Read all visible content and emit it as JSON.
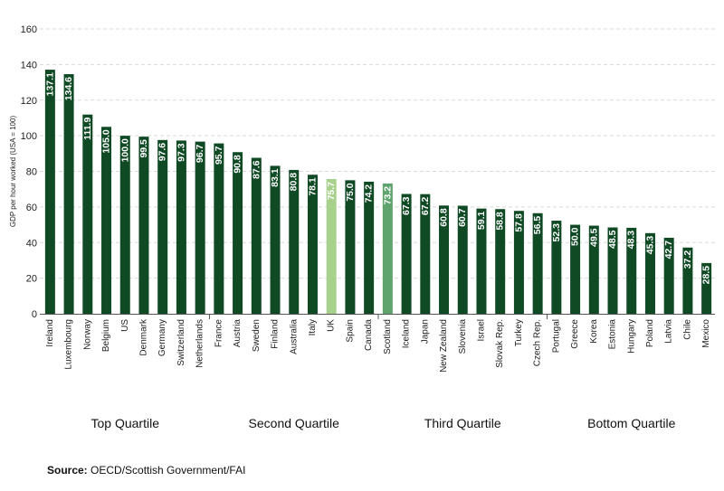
{
  "chart_data": {
    "type": "bar",
    "ylabel": "GDP per hour worked (USA = 100)",
    "ylim": [
      0,
      160
    ],
    "yticks": [
      0,
      20,
      40,
      60,
      80,
      100,
      120,
      140,
      160
    ],
    "grid": true,
    "categories": [
      "Ireland",
      "Luxembourg",
      "Norway",
      "Belgium",
      "US",
      "Denmark",
      "Germany",
      "Switzerland",
      "Netherlands",
      "France",
      "Austria",
      "Sweden",
      "Finland",
      "Australia",
      "Italy",
      "UK",
      "Spain",
      "Canada",
      "Scotland",
      "Iceland",
      "Japan",
      "New Zealand",
      "Slovenia",
      "Israel",
      "Slovak Rep.",
      "Turkey",
      "Czech Rep.",
      "Portugal",
      "Greece",
      "Korea",
      "Estonia",
      "Hungary",
      "Poland",
      "Latvia",
      "Chile",
      "Mexico"
    ],
    "values": [
      137.1,
      134.6,
      111.9,
      105.0,
      100.0,
      99.5,
      97.6,
      97.3,
      96.7,
      95.7,
      90.8,
      87.6,
      83.1,
      80.8,
      78.1,
      75.7,
      75.0,
      74.2,
      73.2,
      67.3,
      67.2,
      60.8,
      60.7,
      59.1,
      58.8,
      57.8,
      56.5,
      52.3,
      50.0,
      49.5,
      48.5,
      48.3,
      45.3,
      42.7,
      37.2,
      28.5
    ],
    "value_labels": [
      "137.1",
      "134.6",
      "111.9",
      "105.0",
      "100.0",
      "99.5",
      "97.6",
      "97.3",
      "96.7",
      "95.7",
      "90.8",
      "87.6",
      "83.1",
      "80.8",
      "78.1",
      "75.7",
      "75.0",
      "74.2",
      "73.2",
      "67.3",
      "67.2",
      "60.8",
      "60.7",
      "59.1",
      "58.8",
      "57.8",
      "56.5",
      "52.3",
      "50.0",
      "49.5",
      "48.5",
      "48.3",
      "45.3",
      "42.7",
      "37.2",
      "28.5"
    ],
    "highlight": {
      "UK": "#a9d18e",
      "Scotland": "#5fa46f"
    },
    "groups": [
      {
        "label": "Top Quartile",
        "start": 0,
        "end": 8
      },
      {
        "label": "Second Quartile",
        "start": 9,
        "end": 17
      },
      {
        "label": "Third Quartile",
        "start": 18,
        "end": 26
      },
      {
        "label": "Bottom Quartile",
        "start": 27,
        "end": 35
      }
    ]
  },
  "colors": {
    "bar": "#0f4a25",
    "uk": "#a9d18e",
    "scotland": "#5fa46f",
    "value_text": "#ffffff"
  },
  "source": {
    "label": "Source:",
    "text": "OECD/Scottish Government/FAI"
  }
}
